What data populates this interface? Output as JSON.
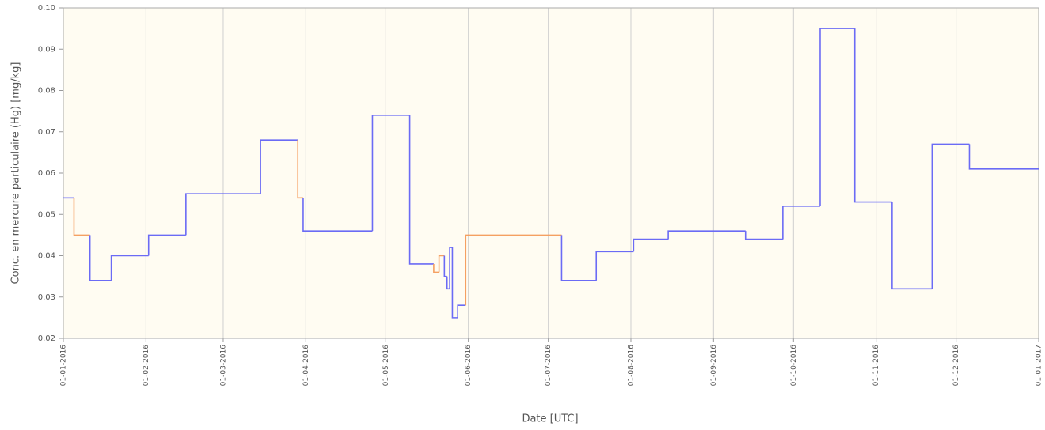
{
  "chart_data": {
    "type": "step",
    "y_label": "Conc. en mercure particulaire (Hg) [mg/kg]",
    "x_label": "Date [UTC]",
    "series": [
      {
        "x": [
          "2016-01-01",
          "2016-01-05",
          "2016-01-11",
          "2016-01-19",
          "2016-02-02",
          "2016-02-16",
          "2016-03-15",
          "2016-03-29",
          "2016-03-31",
          "2016-04-26",
          "2016-05-10",
          "2016-05-19",
          "2016-05-21",
          "2016-05-23",
          "2016-05-24",
          "2016-05-25",
          "2016-05-26",
          "2016-05-28",
          "2016-05-31",
          "2016-07-06",
          "2016-07-19",
          "2016-08-02",
          "2016-08-15",
          "2016-09-13",
          "2016-09-27",
          "2016-10-11",
          "2016-10-24",
          "2016-11-07",
          "2016-11-22",
          "2016-12-06"
        ],
        "values": [
          0.054,
          0.045,
          0.034,
          0.04,
          0.045,
          0.055,
          0.068,
          0.054,
          0.046,
          0.074,
          0.038,
          0.036,
          0.04,
          0.035,
          0.032,
          0.042,
          0.025,
          0.028,
          0.045,
          0.034,
          0.041,
          0.044,
          0.046,
          0.044,
          0.052,
          0.095,
          0.053,
          0.032,
          0.067,
          0.061
        ],
        "colors": [
          "#6b6bf5",
          "#f5a062",
          "#6b6bf5",
          "#6b6bf5",
          "#6b6bf5",
          "#6b6bf5",
          "#6b6bf5",
          "#f5a062",
          "#6b6bf5",
          "#6b6bf5",
          "#6b6bf5",
          "#f5a062",
          "#f5a062",
          "#6b6bf5",
          "#6b6bf5",
          "#6b6bf5",
          "#6b6bf5",
          "#6b6bf5",
          "#f5a062",
          "#6b6bf5",
          "#6b6bf5",
          "#6b6bf5",
          "#6b6bf5",
          "#6b6bf5",
          "#6b6bf5",
          "#6b6bf5",
          "#6b6bf5",
          "#6b6bf5",
          "#6b6bf5",
          "#6b6bf5"
        ]
      }
    ],
    "xlim": [
      "2016-01-01",
      "2017-01-01"
    ],
    "xticks": [
      {
        "value": "2016-01-01",
        "label": "01-01-2016"
      },
      {
        "value": "2016-02-01",
        "label": "01-02-2016"
      },
      {
        "value": "2016-03-01",
        "label": "01-03-2016"
      },
      {
        "value": "2016-04-01",
        "label": "01-04-2016"
      },
      {
        "value": "2016-05-01",
        "label": "01-05-2016"
      },
      {
        "value": "2016-06-01",
        "label": "01-06-2016"
      },
      {
        "value": "2016-07-01",
        "label": "01-07-2016"
      },
      {
        "value": "2016-08-01",
        "label": "01-08-2016"
      },
      {
        "value": "2016-09-01",
        "label": "01-09-2016"
      },
      {
        "value": "2016-10-01",
        "label": "01-10-2016"
      },
      {
        "value": "2016-11-01",
        "label": "01-11-2016"
      },
      {
        "value": "2016-12-01",
        "label": "01-12-2016"
      },
      {
        "value": "2017-01-01",
        "label": "01-01-2017"
      }
    ],
    "ylim": [
      0.02,
      0.1
    ],
    "yticks": [
      0.02,
      0.03,
      0.04,
      0.05,
      0.06,
      0.07,
      0.08,
      0.09,
      {
        "value": 0.1,
        "label": "0.10"
      }
    ],
    "grid": true,
    "background": "#fffcf2"
  }
}
